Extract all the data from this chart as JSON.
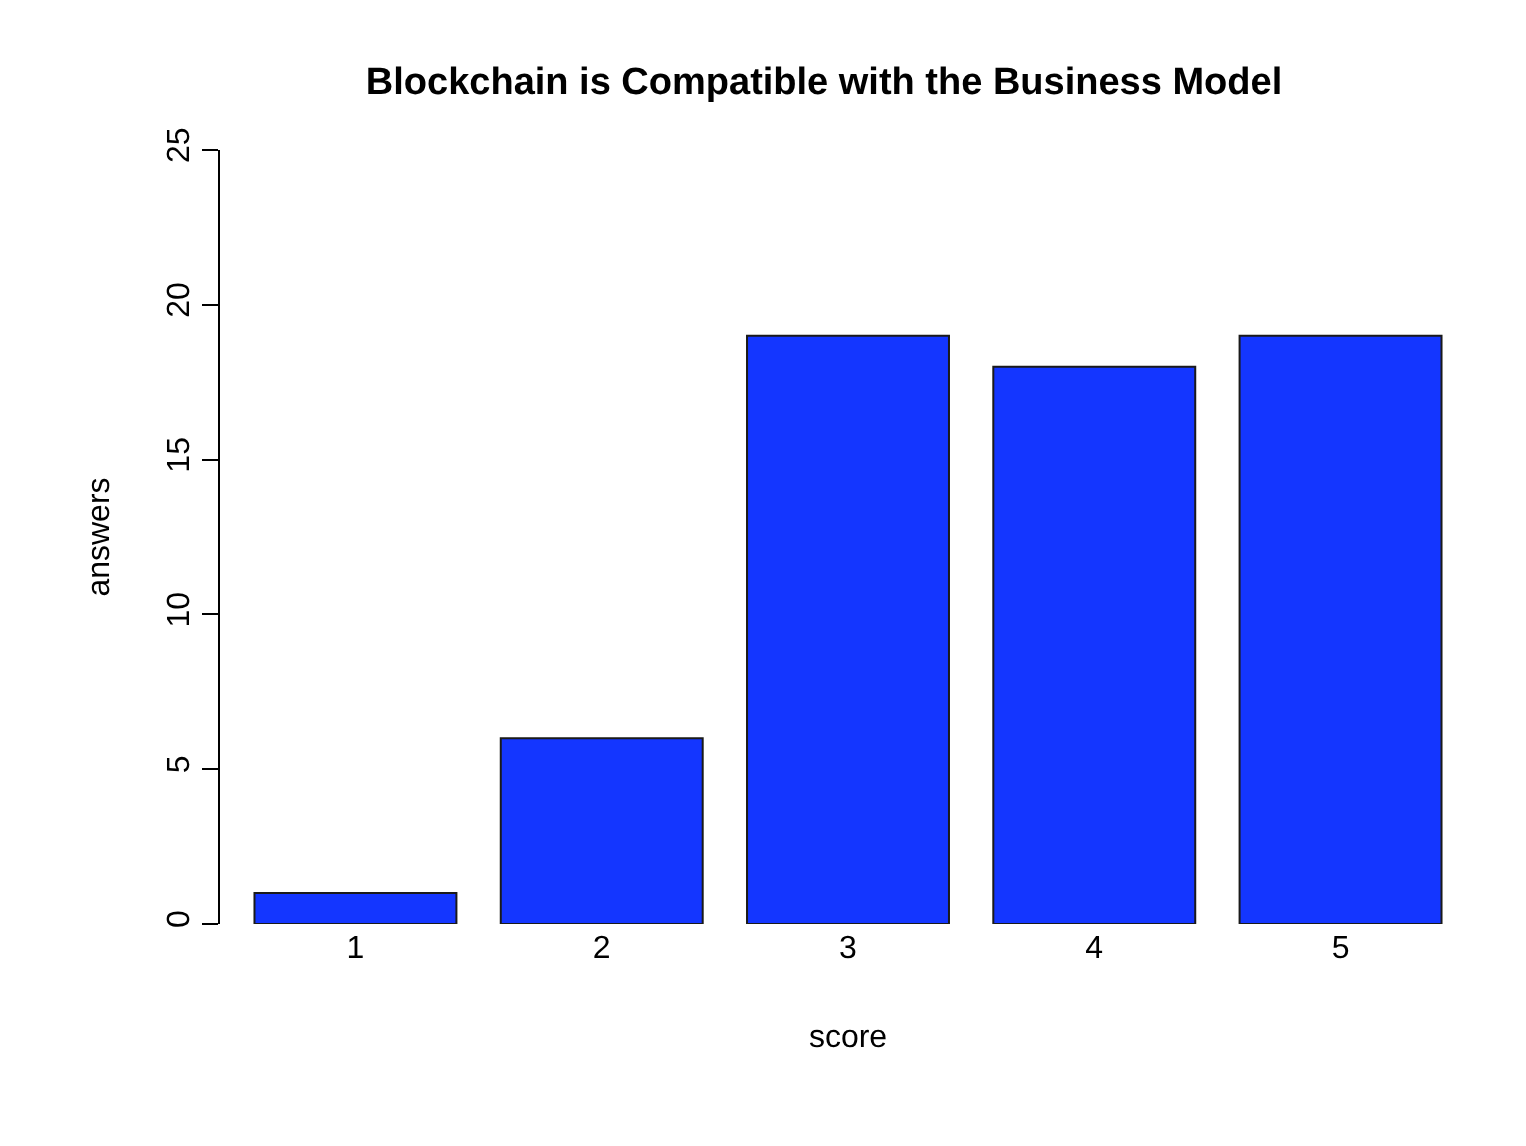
{
  "chart_data": {
    "type": "bar",
    "title": "Blockchain is Compatible with the Business Model",
    "xlabel": "score",
    "ylabel": "answers",
    "categories": [
      "1",
      "2",
      "3",
      "4",
      "5"
    ],
    "values": [
      1,
      6,
      19,
      18,
      19
    ],
    "color": "#1436ff",
    "ylim": [
      0,
      25
    ],
    "yticks": [
      0,
      5,
      10,
      15,
      20,
      25
    ],
    "grid": false,
    "legend": false
  }
}
